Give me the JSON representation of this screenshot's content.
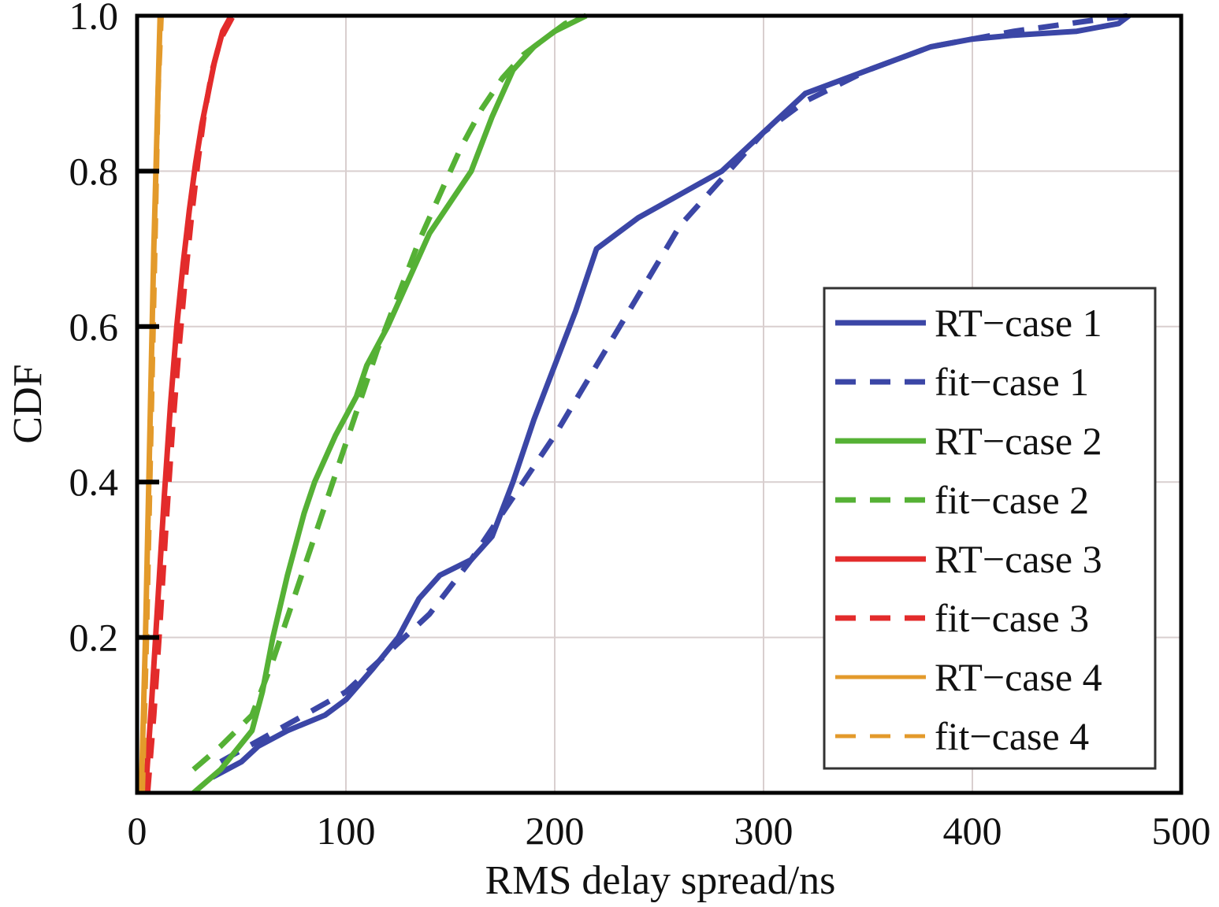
{
  "chart_data": {
    "type": "line",
    "title": "",
    "xlabel": "RMS delay spread/ns",
    "ylabel": "CDF",
    "xlim": [
      0,
      500
    ],
    "ylim": [
      0,
      1
    ],
    "x_ticks": [
      0,
      100,
      200,
      300,
      400,
      500
    ],
    "x_tick_labels": [
      "0",
      "100",
      "200",
      "300",
      "400",
      "500"
    ],
    "y_ticks": [
      0.2,
      0.4,
      0.6,
      0.8,
      1.0
    ],
    "y_tick_labels": [
      "0.2",
      "0.4",
      "0.6",
      "0.8",
      "1.0"
    ],
    "grid": true,
    "legend_position": "bottom-right",
    "series": [
      {
        "name": "RT−case 1",
        "color": "#3b46a6",
        "style": "solid",
        "x": [
          36,
          50,
          58,
          72,
          90,
          100,
          113,
          125,
          135,
          145,
          160,
          170,
          180,
          190,
          200,
          210,
          220,
          240,
          260,
          280,
          300,
          320,
          360,
          380,
          400,
          420,
          450,
          470,
          475
        ],
        "y": [
          0.02,
          0.04,
          0.06,
          0.08,
          0.1,
          0.12,
          0.16,
          0.2,
          0.25,
          0.28,
          0.3,
          0.33,
          0.4,
          0.48,
          0.55,
          0.62,
          0.7,
          0.74,
          0.77,
          0.8,
          0.85,
          0.9,
          0.94,
          0.96,
          0.97,
          0.975,
          0.98,
          0.99,
          1.0
        ]
      },
      {
        "name": "fit−case 1",
        "color": "#3b46a6",
        "style": "dashed",
        "x": [
          40,
          60,
          80,
          100,
          120,
          140,
          160,
          180,
          200,
          220,
          240,
          260,
          280,
          300,
          320,
          350,
          380,
          420,
          460,
          475
        ],
        "y": [
          0.04,
          0.07,
          0.1,
          0.13,
          0.18,
          0.23,
          0.3,
          0.38,
          0.46,
          0.55,
          0.64,
          0.73,
          0.79,
          0.85,
          0.89,
          0.93,
          0.96,
          0.98,
          0.995,
          1.0
        ]
      },
      {
        "name": "RT−case 2",
        "color": "#55b135",
        "style": "solid",
        "x": [
          27,
          40,
          55,
          60,
          65,
          72,
          80,
          85,
          95,
          105,
          110,
          120,
          130,
          140,
          150,
          160,
          170,
          180,
          190,
          200,
          215
        ],
        "y": [
          0.0,
          0.03,
          0.08,
          0.13,
          0.2,
          0.28,
          0.36,
          0.4,
          0.46,
          0.51,
          0.55,
          0.6,
          0.66,
          0.72,
          0.76,
          0.8,
          0.87,
          0.93,
          0.96,
          0.98,
          1.0
        ]
      },
      {
        "name": "fit−case 2",
        "color": "#55b135",
        "style": "dashed",
        "x": [
          27,
          40,
          55,
          65,
          75,
          85,
          95,
          105,
          115,
          125,
          135,
          145,
          155,
          165,
          175,
          185,
          195,
          205,
          215
        ],
        "y": [
          0.03,
          0.06,
          0.1,
          0.17,
          0.25,
          0.33,
          0.41,
          0.49,
          0.57,
          0.64,
          0.71,
          0.77,
          0.83,
          0.88,
          0.92,
          0.95,
          0.97,
          0.99,
          1.0
        ]
      },
      {
        "name": "RT−case 3",
        "color": "#e32b2b",
        "style": "solid",
        "x": [
          4,
          7,
          10,
          13,
          16,
          19,
          22,
          25,
          28,
          31,
          34,
          37,
          41,
          45
        ],
        "y": [
          0.0,
          0.12,
          0.25,
          0.38,
          0.5,
          0.6,
          0.68,
          0.75,
          0.81,
          0.86,
          0.9,
          0.94,
          0.98,
          1.0
        ]
      },
      {
        "name": "fit−case 3",
        "color": "#e32b2b",
        "style": "dashed",
        "x": [
          5,
          8,
          11,
          14,
          17,
          20,
          23,
          26,
          29,
          32,
          36,
          40,
          46
        ],
        "y": [
          0.0,
          0.1,
          0.22,
          0.35,
          0.47,
          0.57,
          0.66,
          0.74,
          0.81,
          0.87,
          0.93,
          0.97,
          1.0
        ]
      },
      {
        "name": "RT−case 4",
        "color": "#e39a2b",
        "style": "solid",
        "x": [
          2,
          4,
          6,
          8,
          10,
          11
        ],
        "y": [
          0.0,
          0.2,
          0.45,
          0.7,
          0.9,
          1.0
        ]
      },
      {
        "name": "fit−case 4",
        "color": "#e39a2b",
        "style": "dashed",
        "x": [
          2.5,
          4.5,
          6.5,
          8.5,
          10,
          11.5
        ],
        "y": [
          0.0,
          0.2,
          0.45,
          0.7,
          0.9,
          1.0
        ]
      }
    ]
  }
}
